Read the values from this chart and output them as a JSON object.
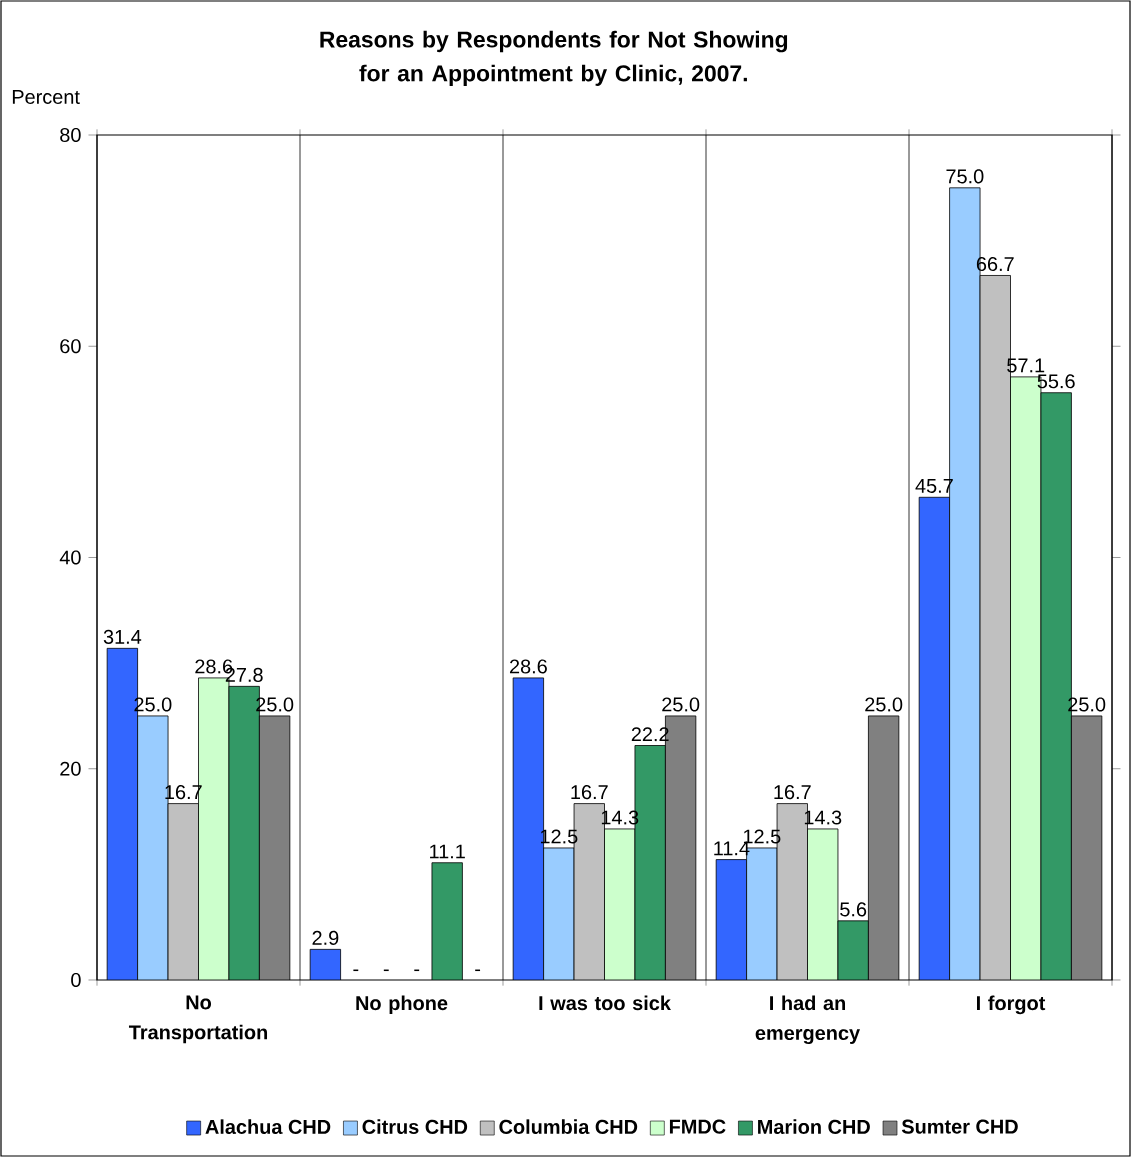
{
  "chart_data": {
    "type": "bar",
    "title": "Reasons by Respondents for Not Showing for an Appointment by Clinic, 2007.",
    "ylabel": "Percent",
    "categories": [
      "No Transportation",
      "No phone",
      "I was too sick",
      "I had an emergency",
      "I forgot"
    ],
    "ylim": [
      0,
      80
    ],
    "yticks": [
      0,
      20,
      40,
      60,
      80
    ],
    "grid": "x",
    "legend": "bottom",
    "series": [
      {
        "name": "Alachua CHD",
        "color": "#3366ff",
        "values": [
          31.4,
          2.9,
          28.6,
          11.4,
          45.7
        ],
        "value_labels": [
          "31.4",
          "2.9",
          "28.6",
          "11.4",
          "45.7"
        ]
      },
      {
        "name": "Citrus CHD",
        "color": "#99ccff",
        "values": [
          25.0,
          null,
          12.5,
          12.5,
          75.0
        ],
        "value_labels": [
          "25.0",
          "-",
          "12.5",
          "12.5",
          "75.0"
        ]
      },
      {
        "name": "Columbia CHD",
        "color": "#c0c0c0",
        "values": [
          16.7,
          null,
          16.7,
          16.7,
          66.7
        ],
        "value_labels": [
          "16.7",
          "-",
          "16.7",
          "16.7",
          "66.7"
        ]
      },
      {
        "name": "FMDC",
        "color": "#ccffcc",
        "values": [
          28.6,
          null,
          14.3,
          14.3,
          57.1
        ],
        "value_labels": [
          "28.6",
          "-",
          "14.3",
          "14.3",
          "57.1"
        ]
      },
      {
        "name": "Marion CHD",
        "color": "#339966",
        "values": [
          27.8,
          11.1,
          22.2,
          5.6,
          55.6
        ],
        "value_labels": [
          "27.8",
          "11.1",
          "22.2",
          "5.6",
          "55.6"
        ]
      },
      {
        "name": "Sumter CHD",
        "color": "#808080",
        "values": [
          25.0,
          null,
          25.0,
          25.0,
          25.0
        ],
        "value_labels": [
          "25.0",
          "-",
          "25.0",
          "25.0",
          "25.0"
        ]
      }
    ]
  }
}
